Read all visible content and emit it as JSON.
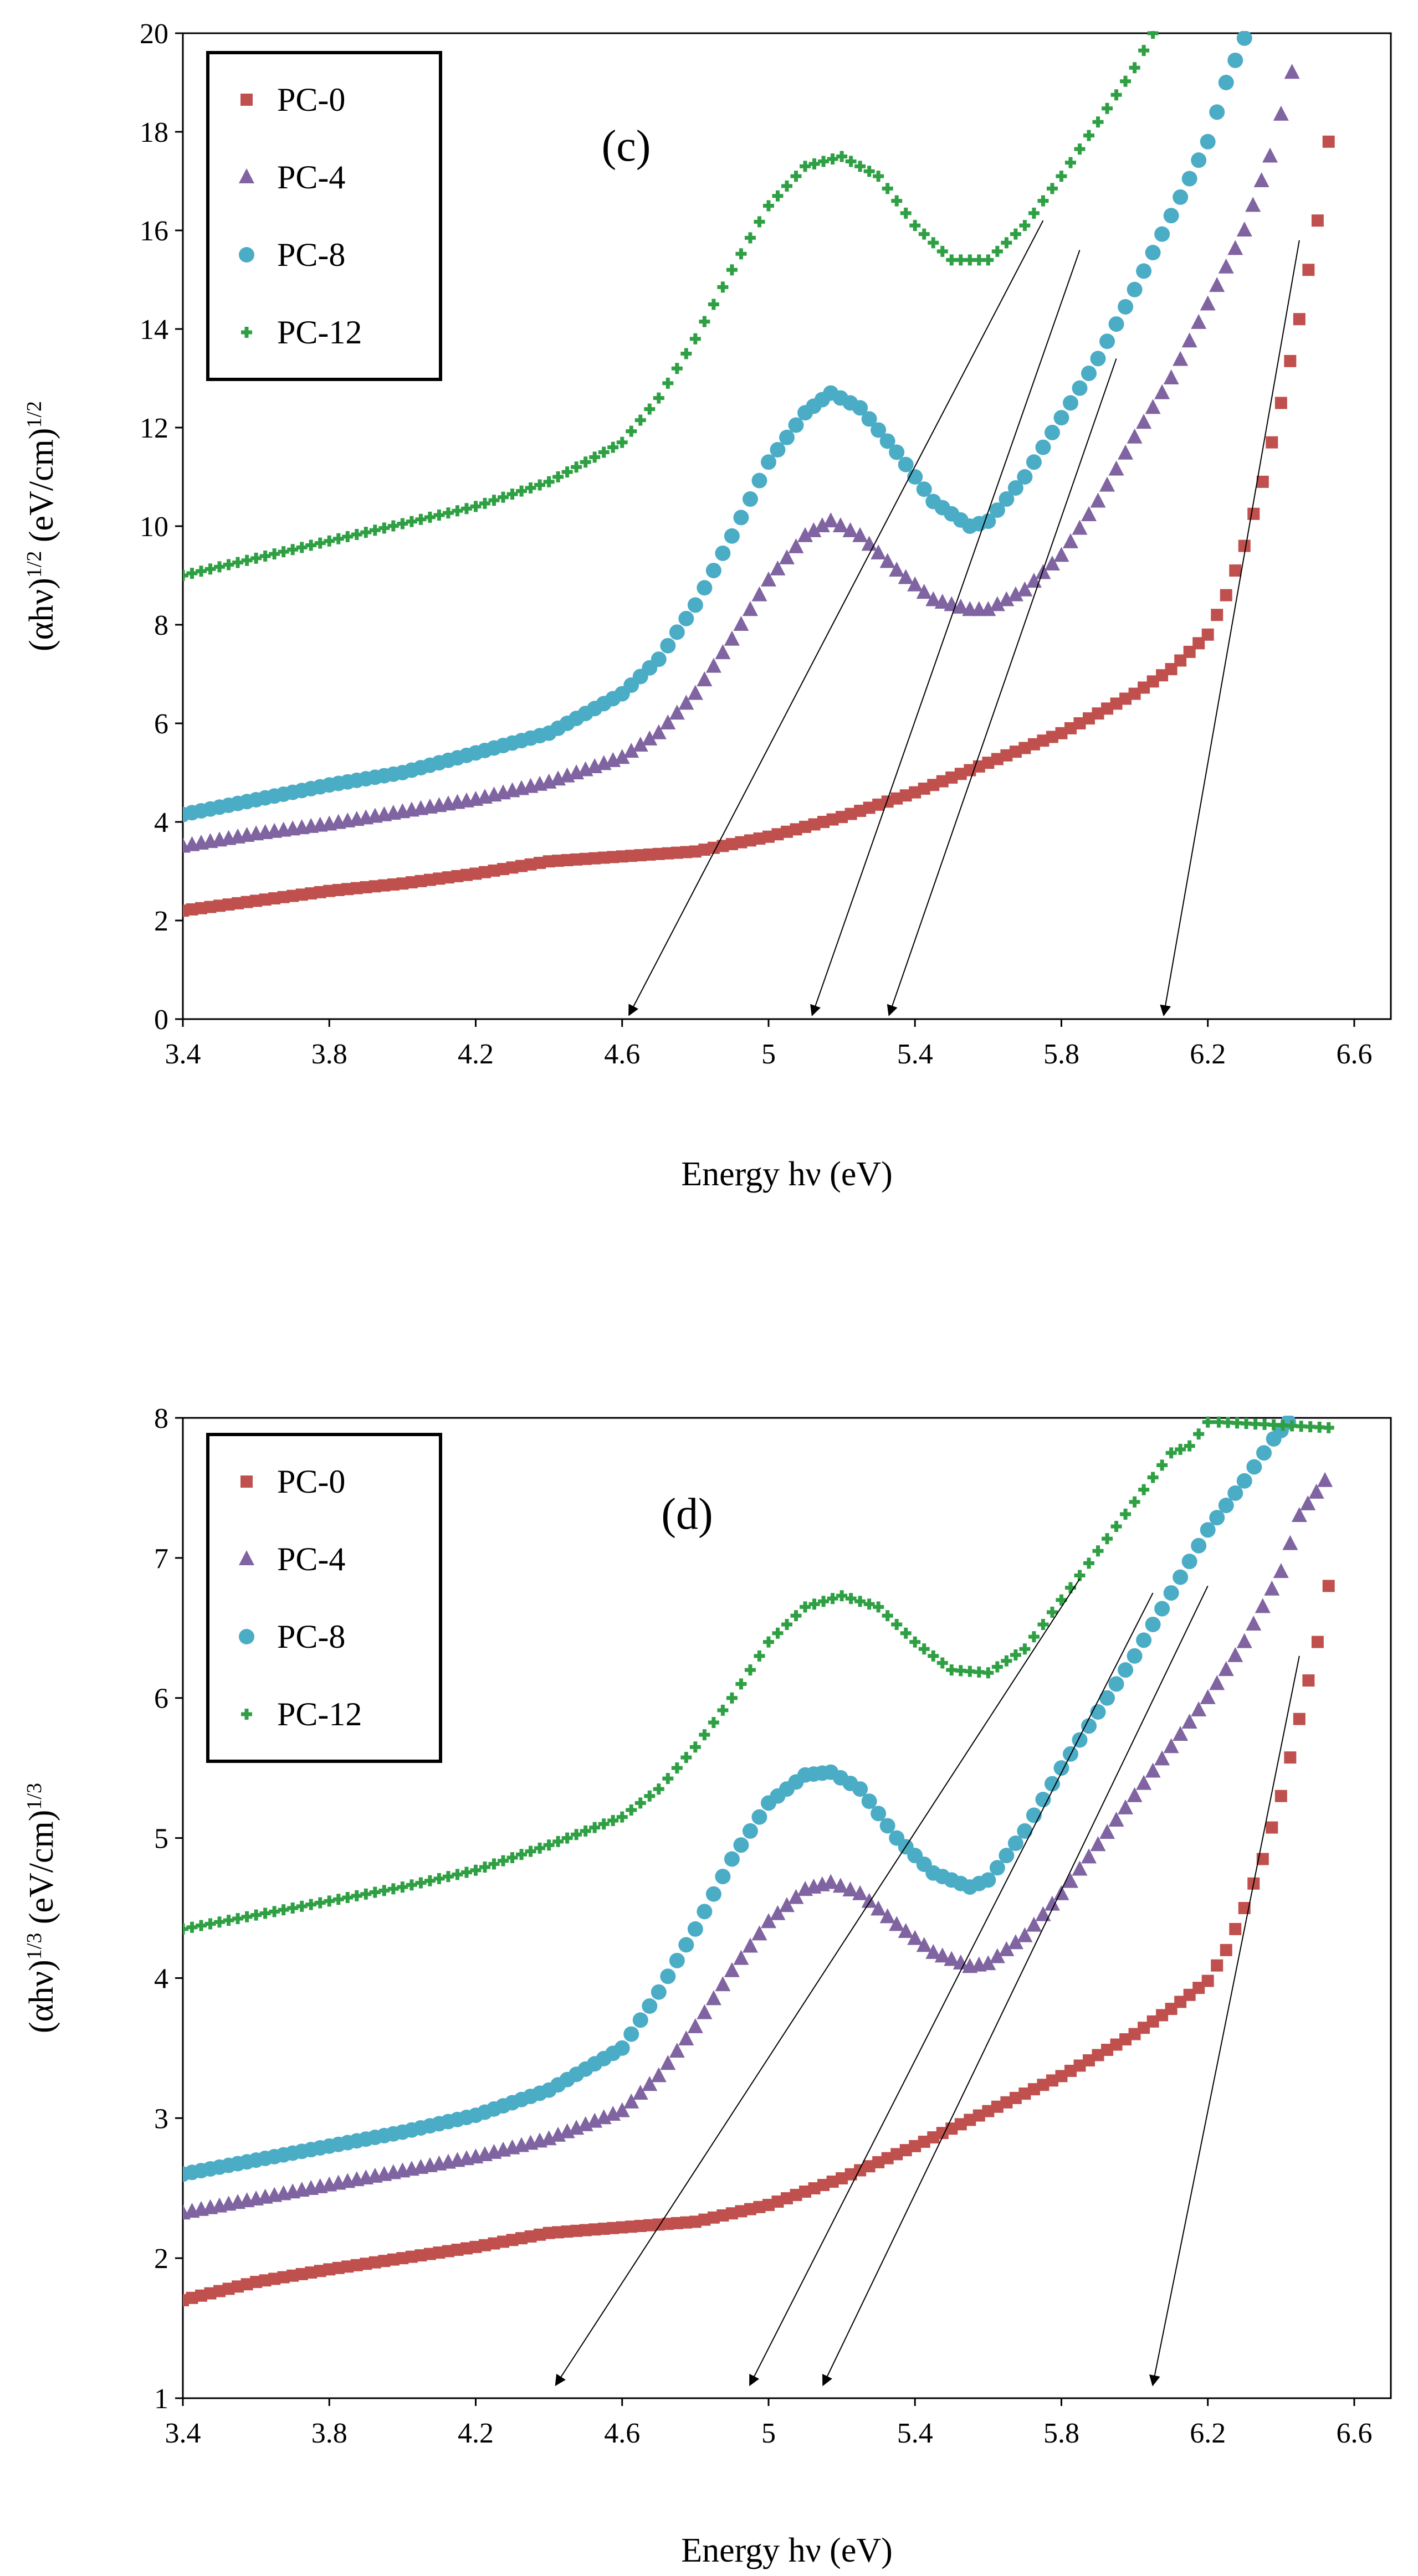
{
  "chart_data": [
    {
      "type": "scatter",
      "panel_label": "(c)",
      "xlabel": "Energy hν (eV)",
      "ylabel_parts": [
        "(αhν)",
        "1/2",
        " (eV/cm)",
        "1/2"
      ],
      "xlim": [
        3.4,
        6.7
      ],
      "ylim": [
        0,
        20
      ],
      "xticks": [
        3.4,
        3.8,
        4.2,
        4.6,
        5.0,
        5.4,
        5.8,
        6.2,
        6.6
      ],
      "xtick_labels": [
        "3.4",
        "3.8",
        "4.2",
        "4.6",
        "5",
        "5.4",
        "5.8",
        "6.2",
        "6.6"
      ],
      "yticks": [
        0,
        2,
        4,
        6,
        8,
        10,
        12,
        14,
        16,
        18,
        20
      ],
      "ytick_labels": [
        "0",
        "2",
        "4",
        "6",
        "8",
        "10",
        "12",
        "14",
        "16",
        "18",
        "20"
      ],
      "legend_position": "top-left",
      "series": [
        {
          "name": "PC-0",
          "color": "#c0504d",
          "marker": "square",
          "x": [
            3.4,
            3.6,
            3.8,
            4.0,
            4.2,
            4.4,
            4.6,
            4.8,
            5.0,
            5.2,
            5.4,
            5.6,
            5.8,
            6.0,
            6.1,
            6.2,
            6.25,
            6.3,
            6.35,
            6.4,
            6.45,
            6.5,
            6.53
          ],
          "y": [
            2.2,
            2.4,
            2.6,
            2.75,
            2.95,
            3.2,
            3.3,
            3.4,
            3.7,
            4.1,
            4.6,
            5.2,
            5.8,
            6.6,
            7.1,
            7.8,
            8.6,
            9.6,
            10.9,
            12.5,
            14.2,
            16.2,
            17.8
          ]
        },
        {
          "name": "PC-4",
          "color": "#8064a2",
          "marker": "triangle",
          "x": [
            3.4,
            3.6,
            3.8,
            4.0,
            4.2,
            4.4,
            4.6,
            4.7,
            4.8,
            4.9,
            5.0,
            5.1,
            5.17,
            5.25,
            5.35,
            5.45,
            5.55,
            5.6,
            5.7,
            5.8,
            5.9,
            6.0,
            6.1,
            6.2,
            6.3,
            6.37,
            6.43
          ],
          "y": [
            3.5,
            3.75,
            3.95,
            4.2,
            4.45,
            4.8,
            5.3,
            5.8,
            6.6,
            7.7,
            8.9,
            9.8,
            10.1,
            9.8,
            9.1,
            8.5,
            8.3,
            8.3,
            8.7,
            9.4,
            10.5,
            11.8,
            13.0,
            14.5,
            16.0,
            17.5,
            19.2
          ]
        },
        {
          "name": "PC-8",
          "color": "#4bacc6",
          "marker": "circle",
          "x": [
            3.4,
            3.6,
            3.8,
            4.0,
            4.2,
            4.4,
            4.6,
            4.7,
            4.8,
            4.9,
            5.0,
            5.1,
            5.17,
            5.25,
            5.35,
            5.45,
            5.55,
            5.6,
            5.7,
            5.8,
            5.9,
            6.0,
            6.1,
            6.2,
            6.25,
            6.3
          ],
          "y": [
            4.15,
            4.45,
            4.75,
            5.0,
            5.4,
            5.8,
            6.6,
            7.3,
            8.4,
            9.8,
            11.3,
            12.3,
            12.7,
            12.4,
            11.5,
            10.5,
            10.0,
            10.1,
            11.0,
            12.2,
            13.4,
            14.8,
            16.3,
            17.8,
            19.0,
            19.9
          ]
        },
        {
          "name": "PC-12",
          "color": "#2ea043",
          "marker": "plus",
          "x": [
            3.4,
            3.6,
            3.8,
            4.0,
            4.2,
            4.4,
            4.6,
            4.7,
            4.8,
            4.9,
            5.0,
            5.1,
            5.2,
            5.3,
            5.4,
            5.5,
            5.6,
            5.7,
            5.8,
            5.9,
            6.0,
            6.05
          ],
          "y": [
            9.0,
            9.35,
            9.7,
            10.05,
            10.4,
            10.9,
            11.7,
            12.6,
            13.8,
            15.2,
            16.5,
            17.3,
            17.5,
            17.1,
            16.1,
            15.4,
            15.4,
            16.1,
            17.1,
            18.2,
            19.3,
            20.0
          ]
        }
      ],
      "arrows": [
        {
          "from": [
            5.75,
            16.2
          ],
          "to": [
            4.62,
            0.1
          ]
        },
        {
          "from": [
            5.85,
            15.6
          ],
          "to": [
            5.12,
            0.1
          ]
        },
        {
          "from": [
            5.95,
            13.4
          ],
          "to": [
            5.33,
            0.1
          ]
        },
        {
          "from": [
            6.45,
            15.8
          ],
          "to": [
            6.08,
            0.1
          ]
        }
      ]
    },
    {
      "type": "scatter",
      "panel_label": "(d)",
      "xlabel": "Energy hν (eV)",
      "ylabel_parts": [
        "(αhν)",
        "1/3",
        " (eV/cm)",
        "1/3"
      ],
      "xlim": [
        3.4,
        6.7
      ],
      "ylim": [
        1,
        8
      ],
      "xticks": [
        3.4,
        3.8,
        4.2,
        4.6,
        5.0,
        5.4,
        5.8,
        6.2,
        6.6
      ],
      "xtick_labels": [
        "3.4",
        "3.8",
        "4.2",
        "4.6",
        "5",
        "5.4",
        "5.8",
        "6.2",
        "6.6"
      ],
      "yticks": [
        1,
        2,
        3,
        4,
        5,
        6,
        7,
        8
      ],
      "ytick_labels": [
        "1",
        "2",
        "3",
        "4",
        "5",
        "6",
        "7",
        "8"
      ],
      "legend_position": "top-left",
      "series": [
        {
          "name": "PC-0",
          "color": "#c0504d",
          "marker": "square",
          "x": [
            3.4,
            3.6,
            3.8,
            4.0,
            4.2,
            4.4,
            4.6,
            4.8,
            5.0,
            5.2,
            5.4,
            5.6,
            5.8,
            6.0,
            6.1,
            6.2,
            6.25,
            6.3,
            6.35,
            6.4,
            6.45,
            6.5,
            6.53
          ],
          "y": [
            1.7,
            1.83,
            1.92,
            2.0,
            2.08,
            2.18,
            2.22,
            2.26,
            2.38,
            2.57,
            2.8,
            3.05,
            3.3,
            3.6,
            3.78,
            3.98,
            4.2,
            4.5,
            4.85,
            5.3,
            5.85,
            6.4,
            6.8
          ]
        },
        {
          "name": "PC-4",
          "color": "#8064a2",
          "marker": "triangle",
          "x": [
            3.4,
            3.6,
            3.8,
            4.0,
            4.2,
            4.4,
            4.6,
            4.7,
            4.8,
            4.9,
            5.0,
            5.1,
            5.17,
            5.25,
            5.35,
            5.45,
            5.55,
            5.6,
            5.7,
            5.8,
            5.9,
            6.0,
            6.1,
            6.2,
            6.3,
            6.4,
            6.45,
            6.52
          ],
          "y": [
            2.32,
            2.42,
            2.52,
            2.62,
            2.72,
            2.85,
            3.05,
            3.3,
            3.65,
            4.05,
            4.4,
            4.63,
            4.68,
            4.6,
            4.38,
            4.18,
            4.08,
            4.1,
            4.3,
            4.6,
            4.95,
            5.3,
            5.65,
            6.0,
            6.4,
            6.9,
            7.3,
            7.55
          ]
        },
        {
          "name": "PC-8",
          "color": "#4bacc6",
          "marker": "circle",
          "x": [
            3.4,
            3.6,
            3.8,
            4.0,
            4.2,
            4.4,
            4.6,
            4.7,
            4.8,
            4.9,
            5.0,
            5.1,
            5.17,
            5.25,
            5.35,
            5.45,
            5.55,
            5.6,
            5.7,
            5.8,
            5.9,
            6.0,
            6.1,
            6.2,
            6.3,
            6.38,
            6.42
          ],
          "y": [
            2.6,
            2.7,
            2.8,
            2.9,
            3.02,
            3.2,
            3.5,
            3.9,
            4.35,
            4.85,
            5.25,
            5.45,
            5.47,
            5.35,
            5.0,
            4.75,
            4.65,
            4.7,
            5.05,
            5.5,
            5.9,
            6.3,
            6.75,
            7.2,
            7.55,
            7.85,
            7.97
          ]
        },
        {
          "name": "PC-12",
          "color": "#2ea043",
          "marker": "plus",
          "x": [
            3.4,
            3.6,
            3.8,
            4.0,
            4.2,
            4.4,
            4.6,
            4.7,
            4.8,
            4.9,
            5.0,
            5.1,
            5.2,
            5.3,
            5.4,
            5.5,
            5.6,
            5.7,
            5.8,
            5.9,
            6.0,
            6.1,
            6.15,
            6.2,
            6.23,
            6.53
          ],
          "y": [
            4.35,
            4.45,
            4.55,
            4.65,
            4.77,
            4.95,
            5.15,
            5.35,
            5.65,
            6.0,
            6.4,
            6.65,
            6.73,
            6.65,
            6.4,
            6.2,
            6.18,
            6.35,
            6.7,
            7.05,
            7.4,
            7.75,
            7.8,
            7.97,
            7.97,
            7.93
          ]
        }
      ],
      "arrows": [
        {
          "from": [
            5.85,
            6.85
          ],
          "to": [
            4.42,
            1.1
          ]
        },
        {
          "from": [
            6.05,
            6.75
          ],
          "to": [
            4.95,
            1.1
          ]
        },
        {
          "from": [
            6.2,
            6.8
          ],
          "to": [
            5.15,
            1.1
          ]
        },
        {
          "from": [
            6.45,
            6.3
          ],
          "to": [
            6.05,
            1.1
          ]
        }
      ]
    }
  ]
}
